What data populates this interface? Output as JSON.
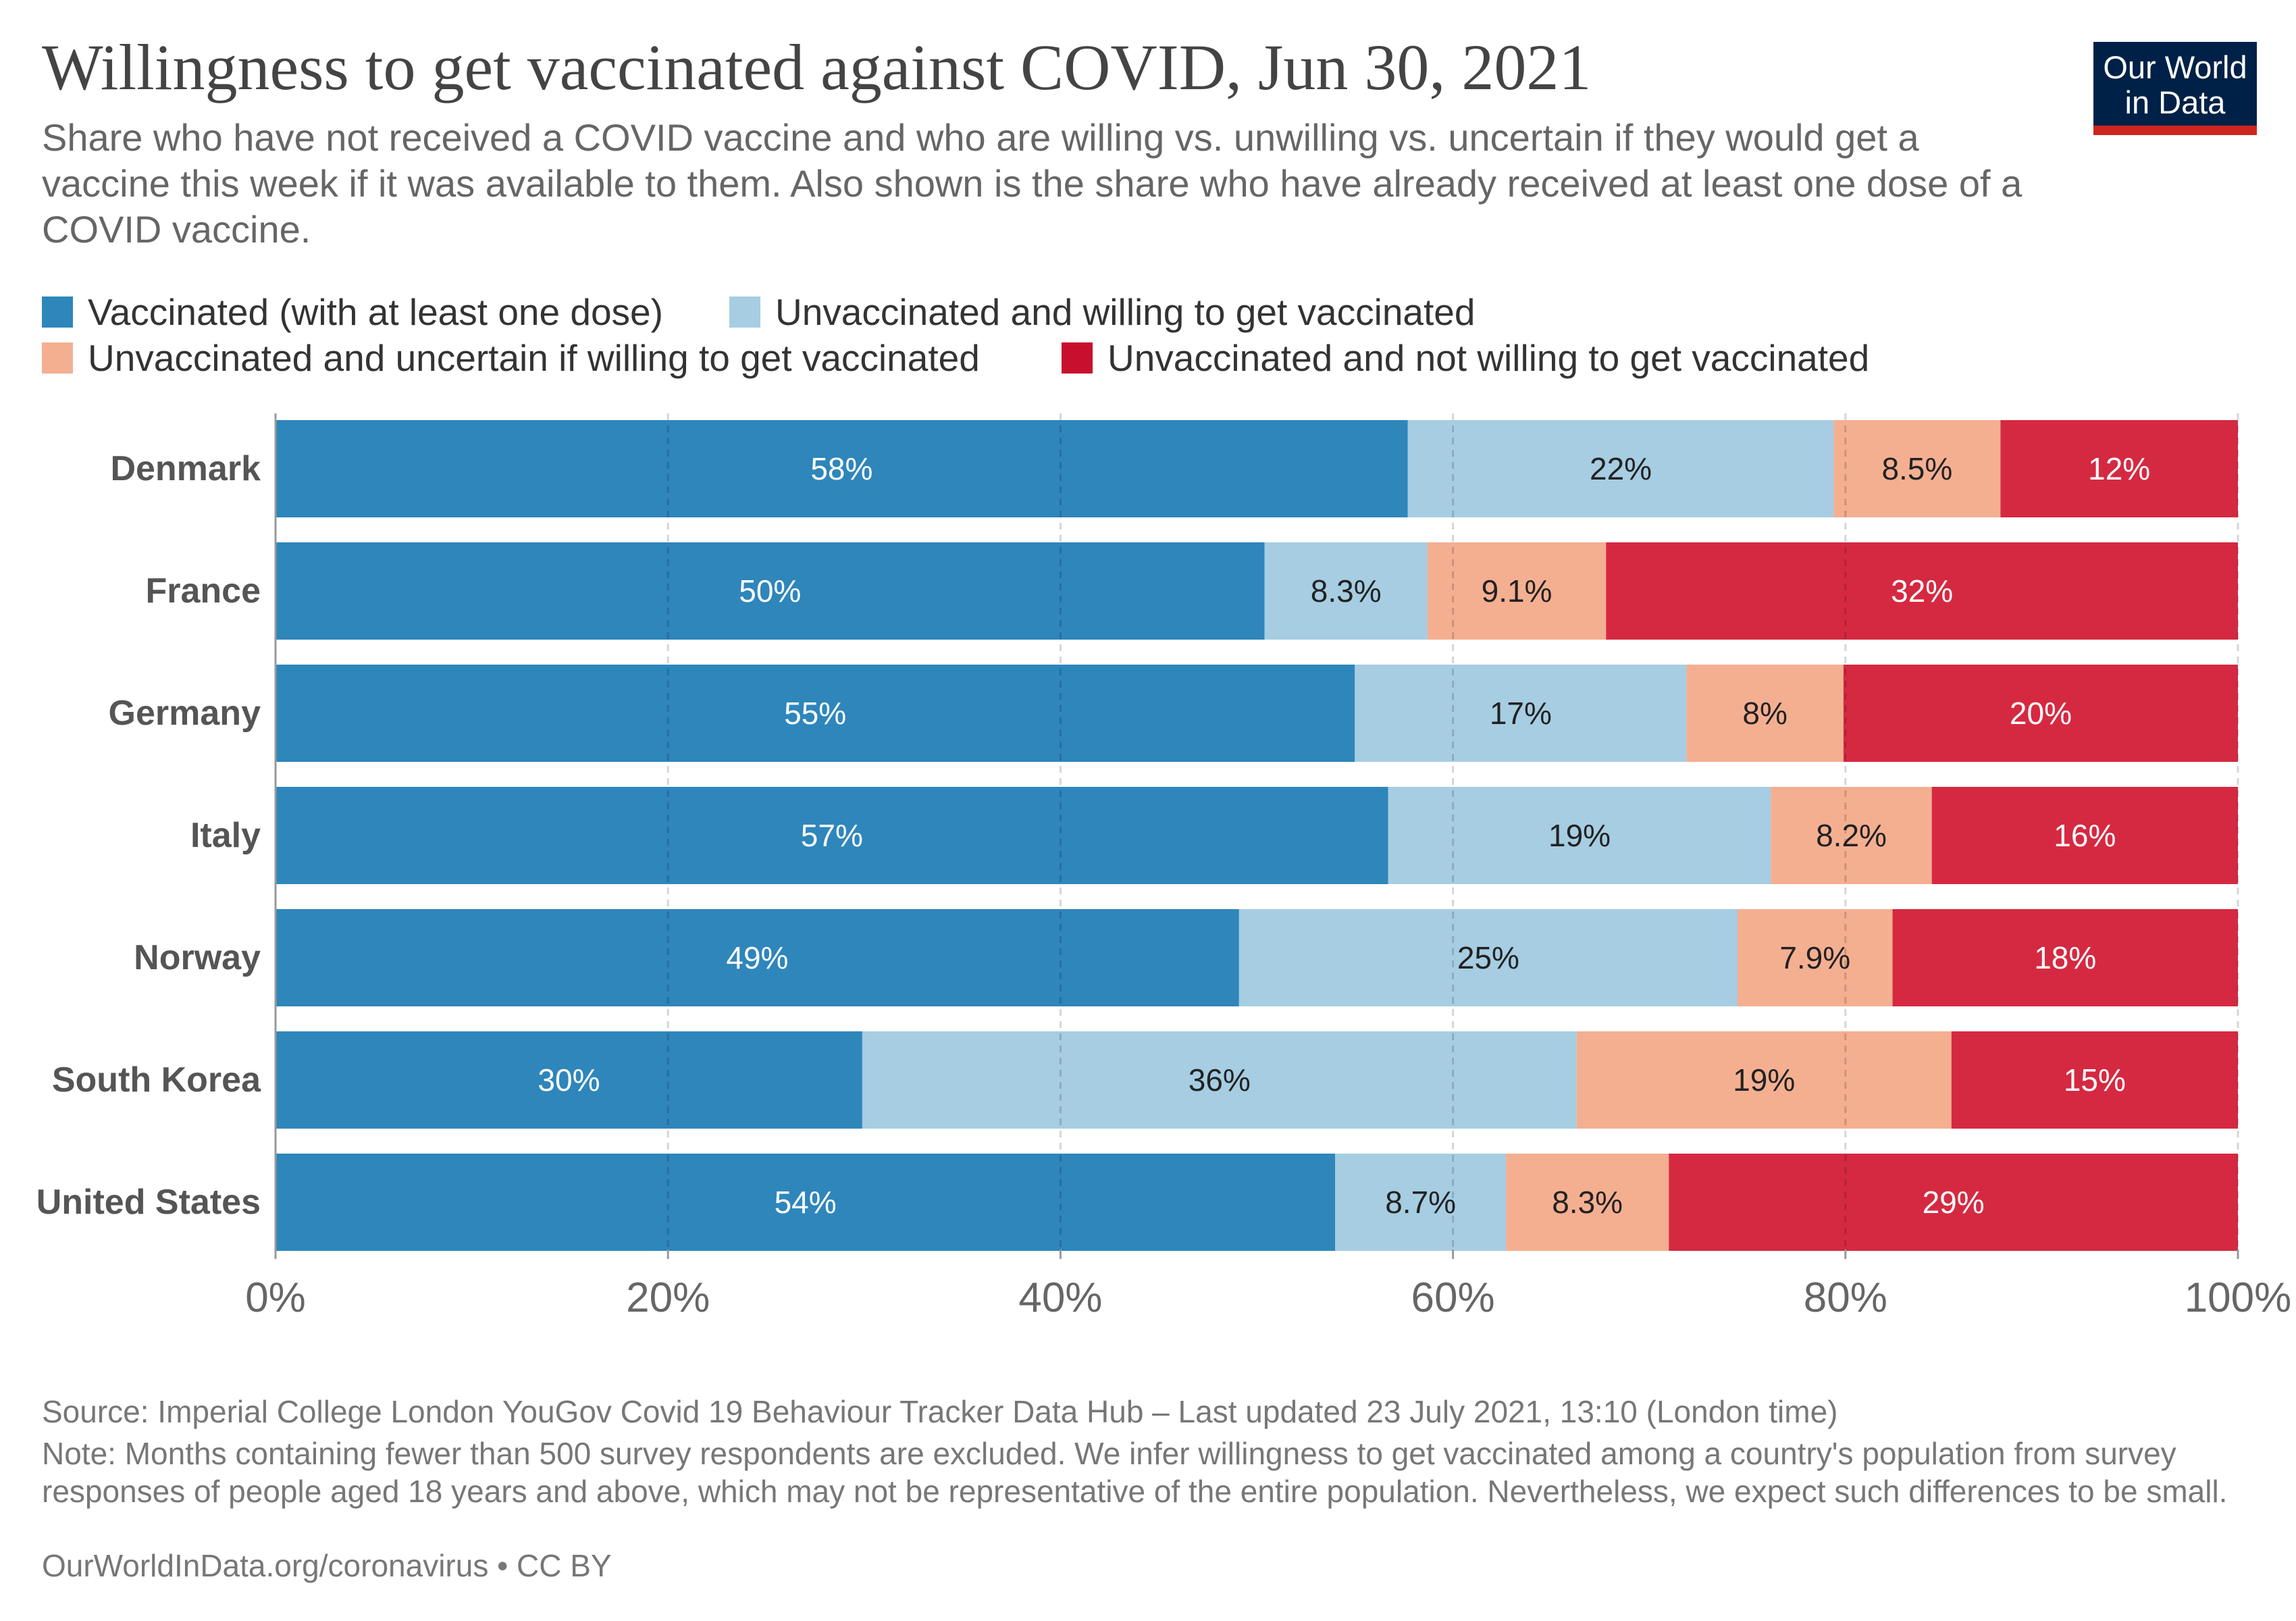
{
  "header": {
    "title": "Willingness to get vaccinated against COVID, Jun 30, 2021",
    "subtitle": "Share who have not received a COVID vaccine and who are willing vs. unwilling vs. uncertain if they would get a vaccine this week if it was available to them. Also shown is the share who have already received at least one dose of a COVID vaccine."
  },
  "logo": {
    "line1": "Our World",
    "line2": "in Data",
    "bg_color": "#002147",
    "bar_color": "#ce261e"
  },
  "chart_data": {
    "type": "bar",
    "orientation": "horizontal",
    "stacked": true,
    "categories": [
      "Denmark",
      "France",
      "Germany",
      "Italy",
      "Norway",
      "South Korea",
      "United States"
    ],
    "series": [
      {
        "name": "Vaccinated (with at least one dose)",
        "color": "#2e86bb",
        "label_color": "#ffffff",
        "values": [
          57.7,
          50.4,
          55.0,
          56.7,
          49.1,
          29.9,
          54.0
        ],
        "labels": [
          "58%",
          "50%",
          "55%",
          "57%",
          "49%",
          "30%",
          "54%"
        ]
      },
      {
        "name": "Unvaccinated and willing to get vaccinated",
        "color": "#a6cde2",
        "label_color": "#222222",
        "values": [
          21.7,
          8.3,
          16.9,
          19.5,
          25.4,
          36.4,
          8.7
        ],
        "labels": [
          "22%",
          "8.3%",
          "17%",
          "19%",
          "25%",
          "36%",
          "8.7%"
        ]
      },
      {
        "name": "Unvaccinated and uncertain if willing to get vaccinated",
        "color": "#f4af91",
        "label_color": "#222222",
        "values": [
          8.5,
          9.1,
          8.0,
          8.2,
          7.9,
          19.1,
          8.3
        ],
        "labels": [
          "8.5%",
          "9.1%",
          "8%",
          "8.2%",
          "7.9%",
          "19%",
          "8.3%"
        ]
      },
      {
        "name": "Unvaccinated and not willing to get vaccinated",
        "color": "#d52941",
        "legend_color": "#c8102e",
        "label_color": "#ffffff",
        "values": [
          12.1,
          32.2,
          20.1,
          15.6,
          17.6,
          14.6,
          29.0
        ],
        "labels": [
          "12%",
          "32%",
          "20%",
          "16%",
          "18%",
          "15%",
          "29%"
        ]
      }
    ],
    "xlim": [
      0,
      100
    ],
    "ticks": [
      0,
      20,
      40,
      60,
      80,
      100
    ],
    "tick_labels": [
      "0%",
      "20%",
      "40%",
      "60%",
      "80%",
      "100%"
    ],
    "grid": true,
    "legend_position": "top"
  },
  "footer": {
    "source": "Source: Imperial College London YouGov Covid 19 Behaviour Tracker Data Hub – Last updated 23 July 2021, 13:10 (London time)",
    "note": "Note: Months containing fewer than 500 survey respondents are excluded. We infer willingness to get vaccinated among a country's population from survey responses of people aged 18 years and above, which may not be representative of the entire population. Nevertheless, we expect such differences to be small.",
    "url": "OurWorldInData.org/coronavirus • CC BY"
  }
}
